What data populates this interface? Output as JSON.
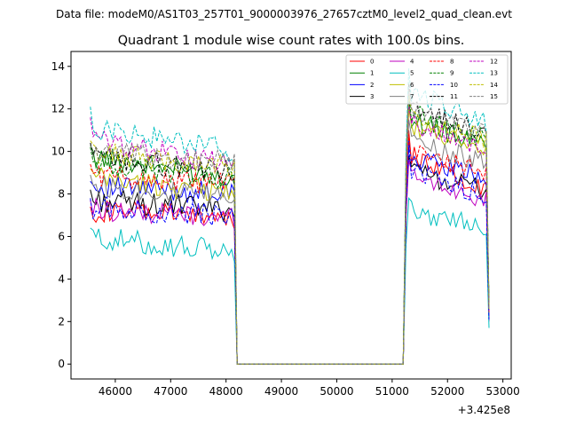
{
  "chart_data": {
    "type": "line",
    "suptitle": "Data file: modeM0/AS1T03_257T01_9000003976_27657cztM0_level2_quad_clean.evt",
    "title": "Quadrant 1 module wise count rates with 100.0s bins.",
    "xlabel": "",
    "ylabel": "",
    "x_offset_label": "+3.425e8",
    "xlim": [
      45200,
      53150
    ],
    "ylim": [
      -0.7,
      14.7
    ],
    "xticks": [
      46000,
      47000,
      48000,
      49000,
      50000,
      51000,
      52000,
      53000
    ],
    "yticks": [
      0,
      2,
      4,
      6,
      8,
      10,
      12,
      14
    ],
    "grid": false,
    "legend_position": "upper-right",
    "legend_columns": 4,
    "x_segments": {
      "seg1": {
        "start": 45550,
        "end": 48150,
        "step": 50
      },
      "gap_start": 48200,
      "gap_end": 51200,
      "seg2": {
        "start": 51250,
        "end": 52750,
        "step": 50
      }
    },
    "series": [
      {
        "name": "0",
        "color": "#ff0000",
        "dash": false,
        "seg1_mean": 7.0,
        "seg1_start": 7.4,
        "seg1_end": 6.8,
        "seg2_peak": 11.0,
        "seg2_mean": 8.7,
        "seg2_end": 7.8,
        "last": 2.3
      },
      {
        "name": "1",
        "color": "#008000",
        "dash": false,
        "seg1_mean": 9.2,
        "seg1_start": 10.3,
        "seg1_end": 8.4,
        "seg2_peak": 12.5,
        "seg2_mean": 10.6,
        "seg2_end": 9.8,
        "last": 2.6
      },
      {
        "name": "2",
        "color": "#0000ff",
        "dash": false,
        "seg1_mean": 8.1,
        "seg1_start": 8.6,
        "seg1_end": 7.9,
        "seg2_peak": 10.5,
        "seg2_mean": 8.9,
        "seg2_end": 8.6,
        "last": 2.2
      },
      {
        "name": "3",
        "color": "#000000",
        "dash": false,
        "seg1_mean": 7.2,
        "seg1_start": 8.2,
        "seg1_end": 7.3,
        "seg2_peak": 9.8,
        "seg2_mean": 8.3,
        "seg2_end": 8.0,
        "last": 2.1
      },
      {
        "name": "4",
        "color": "#bf00bf",
        "dash": false,
        "seg1_mean": 6.9,
        "seg1_start": 7.7,
        "seg1_end": 6.9,
        "seg2_peak": 9.6,
        "seg2_mean": 8.0,
        "seg2_end": 7.5,
        "last": 2.0
      },
      {
        "name": "5",
        "color": "#00bfbf",
        "dash": false,
        "seg1_mean": 5.5,
        "seg1_start": 6.4,
        "seg1_end": 5.0,
        "seg2_peak": 7.8,
        "seg2_mean": 6.6,
        "seg2_end": 6.3,
        "last": 1.7
      },
      {
        "name": "6",
        "color": "#bfbf00",
        "dash": false,
        "seg1_mean": 8.3,
        "seg1_start": 9.2,
        "seg1_end": 7.8,
        "seg2_peak": 12.0,
        "seg2_mean": 10.3,
        "seg2_end": 9.6,
        "last": 2.4
      },
      {
        "name": "7",
        "color": "#808080",
        "dash": false,
        "seg1_mean": 7.9,
        "seg1_start": 8.9,
        "seg1_end": 7.8,
        "seg2_peak": 11.5,
        "seg2_mean": 9.6,
        "seg2_end": 9.2,
        "last": 2.3
      },
      {
        "name": "8",
        "color": "#ff0000",
        "dash": true,
        "seg1_mean": 8.5,
        "seg1_start": 9.4,
        "seg1_end": 8.3,
        "seg2_peak": 10.8,
        "seg2_mean": 9.2,
        "seg2_end": 8.6,
        "last": 2.4
      },
      {
        "name": "9",
        "color": "#008000",
        "dash": true,
        "seg1_mean": 8.8,
        "seg1_start": 10.2,
        "seg1_end": 8.6,
        "seg2_peak": 12.8,
        "seg2_mean": 10.9,
        "seg2_end": 10.1,
        "last": 2.6
      },
      {
        "name": "10",
        "color": "#0000ff",
        "dash": true,
        "seg1_mean": 6.9,
        "seg1_start": 7.8,
        "seg1_end": 7.0,
        "seg2_peak": 10.2,
        "seg2_mean": 8.1,
        "seg2_end": 7.6,
        "last": 2.1
      },
      {
        "name": "11",
        "color": "#000000",
        "dash": true,
        "seg1_mean": 9.1,
        "seg1_start": 10.4,
        "seg1_end": 8.9,
        "seg2_peak": 13.2,
        "seg2_mean": 11.0,
        "seg2_end": 10.5,
        "last": 2.7
      },
      {
        "name": "12",
        "color": "#bf00bf",
        "dash": true,
        "seg1_mean": 9.6,
        "seg1_start": 11.6,
        "seg1_end": 9.0,
        "seg2_peak": 12.2,
        "seg2_mean": 10.4,
        "seg2_end": 10.0,
        "last": 2.5
      },
      {
        "name": "13",
        "color": "#00bfbf",
        "dash": true,
        "seg1_mean": 10.2,
        "seg1_start": 12.1,
        "seg1_end": 9.8,
        "seg2_peak": 13.9,
        "seg2_mean": 11.8,
        "seg2_end": 10.6,
        "last": 2.8
      },
      {
        "name": "14",
        "color": "#bfbf00",
        "dash": true,
        "seg1_mean": 9.4,
        "seg1_start": 10.5,
        "seg1_end": 9.1,
        "seg2_peak": 12.6,
        "seg2_mean": 10.8,
        "seg2_end": 10.3,
        "last": 2.6
      },
      {
        "name": "15",
        "color": "#808080",
        "dash": true,
        "seg1_mean": 9.6,
        "seg1_start": 10.3,
        "seg1_end": 9.3,
        "seg2_peak": 12.9,
        "seg2_mean": 11.1,
        "seg2_end": 10.7,
        "last": 2.6
      }
    ]
  }
}
